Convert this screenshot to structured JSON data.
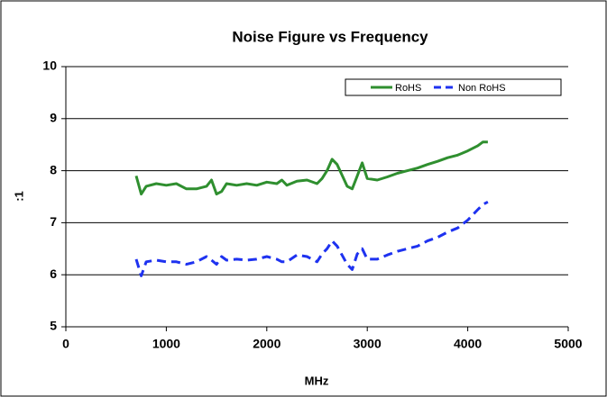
{
  "chart_data": {
    "type": "line",
    "title": "Noise Figure vs Frequency",
    "x_label": "MHz",
    "y_label": ":1",
    "x": [
      700,
      750,
      800,
      900,
      1000,
      1100,
      1200,
      1300,
      1400,
      1450,
      1500,
      1550,
      1600,
      1700,
      1800,
      1900,
      2000,
      2100,
      2150,
      2200,
      2300,
      2400,
      2500,
      2550,
      2600,
      2650,
      2700,
      2800,
      2850,
      2900,
      2950,
      3000,
      3100,
      3200,
      3300,
      3400,
      3500,
      3600,
      3700,
      3800,
      3900,
      4000,
      4100,
      4150,
      4200
    ],
    "series": [
      {
        "name": "RoHS",
        "color": "#2f8f2f",
        "dashed": false,
        "values": [
          7.9,
          7.55,
          7.7,
          7.75,
          7.72,
          7.75,
          7.65,
          7.65,
          7.7,
          7.82,
          7.55,
          7.6,
          7.75,
          7.72,
          7.75,
          7.72,
          7.78,
          7.75,
          7.82,
          7.72,
          7.8,
          7.82,
          7.75,
          7.85,
          8.0,
          8.22,
          8.12,
          7.7,
          7.65,
          7.9,
          8.15,
          7.85,
          7.82,
          7.88,
          7.95,
          8.0,
          8.05,
          8.12,
          8.18,
          8.25,
          8.3,
          8.38,
          8.48,
          8.55,
          8.55
        ]
      },
      {
        "name": "Non RoHS",
        "color": "#1e32f0",
        "dashed": true,
        "values": [
          6.3,
          5.98,
          6.25,
          6.28,
          6.25,
          6.25,
          6.2,
          6.25,
          6.35,
          6.28,
          6.2,
          6.35,
          6.28,
          6.3,
          6.28,
          6.3,
          6.35,
          6.3,
          6.25,
          6.25,
          6.38,
          6.35,
          6.25,
          6.4,
          6.5,
          6.65,
          6.55,
          6.2,
          6.1,
          6.4,
          6.5,
          6.3,
          6.3,
          6.38,
          6.45,
          6.5,
          6.55,
          6.65,
          6.72,
          6.82,
          6.9,
          7.05,
          7.25,
          7.35,
          7.4
        ]
      }
    ],
    "xlim": [
      0,
      5000
    ],
    "xticks": [
      0,
      1000,
      2000,
      3000,
      4000,
      5000
    ],
    "ylim": [
      5,
      10
    ],
    "yticks": [
      5,
      6,
      7,
      8,
      9,
      10
    ],
    "grid": true,
    "legend": "top-right"
  }
}
